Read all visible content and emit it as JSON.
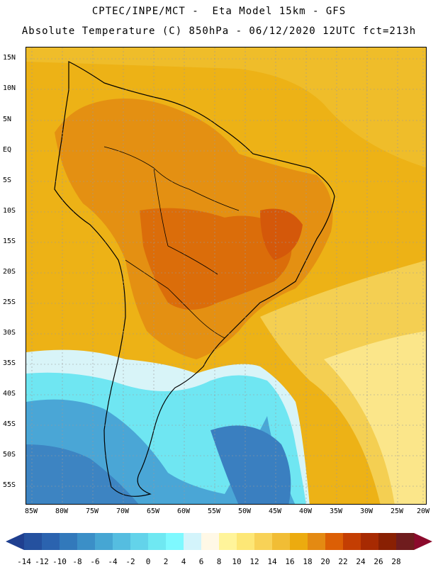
{
  "header": {
    "title_line1": "CPTEC/INPE/MCT -  Eta Model 15km - GFS",
    "title_line2": "Absolute Temperature (C) 850hPa - 06/12/2020 12UTC fct=213h"
  },
  "axes": {
    "lat_labels": [
      "15N",
      "10N",
      "5N",
      "EQ",
      "5S",
      "10S",
      "15S",
      "20S",
      "25S",
      "30S",
      "35S",
      "40S",
      "45S",
      "50S",
      "55S"
    ],
    "lon_labels": [
      "85W",
      "80W",
      "75W",
      "70W",
      "65W",
      "60W",
      "55W",
      "50W",
      "45W",
      "40W",
      "35W",
      "30W",
      "25W",
      "20W"
    ]
  },
  "colorbar": {
    "labels": [
      "-14",
      "-12",
      "-10",
      "-8",
      "-6",
      "-4",
      "-2",
      "0",
      "2",
      "4",
      "6",
      "8",
      "10",
      "12",
      "14",
      "16",
      "18",
      "20",
      "22",
      "24",
      "26",
      "28"
    ],
    "colors": [
      "#1f3f8f",
      "#25519f",
      "#2b63af",
      "#3279bb",
      "#3b8fc7",
      "#46a6d3",
      "#55bde0",
      "#63d3ea",
      "#6fe8f2",
      "#7ef9ff",
      "#d3f4fb",
      "#fff8e6",
      "#fff49a",
      "#fde776",
      "#f8d257",
      "#f1bd35",
      "#ecab0f",
      "#e48a12",
      "#dc5f05",
      "#c43e03",
      "#a72a02",
      "#892003",
      "#6f1c1e",
      "#8b0a2c"
    ]
  },
  "legend_colors": {
    "ocean_north": "#edb216",
    "land_warm": "#e49012",
    "land_hot": "#db6d0a",
    "cool_light": "#d8f4f8",
    "cyan": "#6fe6f2",
    "blue_mid": "#4aa6d6",
    "blue_deep": "#3d84c2"
  }
}
